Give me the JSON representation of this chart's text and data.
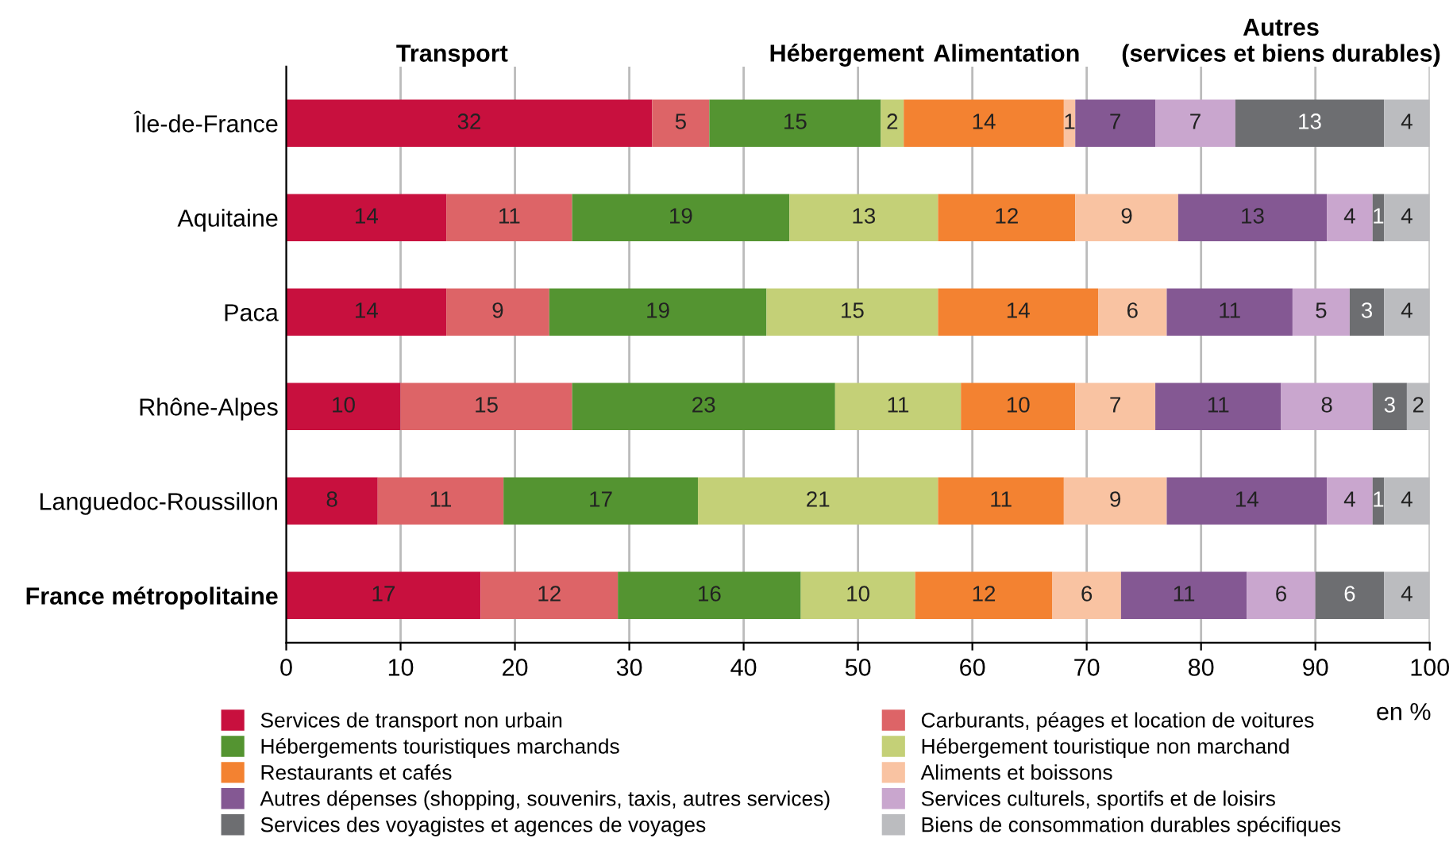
{
  "chart_data": {
    "type": "bar",
    "orientation": "horizontal",
    "stacked": true,
    "data_labels": true,
    "grid": "x",
    "legend": "bottom",
    "categories": [
      "Île-de-France",
      "Aquitaine",
      "Paca",
      "Rhône-Alpes",
      "Languedoc-Roussillon",
      "France métropolitaine"
    ],
    "xlim": [
      0,
      100
    ],
    "xticks": [
      0,
      10,
      20,
      30,
      40,
      50,
      60,
      70,
      80,
      90,
      100
    ],
    "annotations": [
      "Transport",
      "Hébergement",
      "Alimentation",
      "Autres\n(services et biens durables)",
      "en %"
    ],
    "series": [
      {
        "name": "Services de transport non urbain",
        "color": "#c8103e",
        "values": [
          32,
          14,
          14,
          10,
          8,
          17
        ]
      },
      {
        "name": "Carburants, péages et location de voitures",
        "color": "#dd6467",
        "values": [
          5,
          11,
          9,
          15,
          11,
          12
        ]
      },
      {
        "name": "Hébergements touristiques marchands",
        "color": "#549431",
        "values": [
          15,
          19,
          19,
          23,
          17,
          16
        ]
      },
      {
        "name": "Hébergement touristique non marchand",
        "color": "#c4d077",
        "values": [
          2,
          13,
          15,
          11,
          21,
          10
        ]
      },
      {
        "name": "Restaurants et cafés",
        "color": "#f38231",
        "values": [
          14,
          12,
          14,
          10,
          11,
          12
        ]
      },
      {
        "name": "Aliments et boissons",
        "color": "#f9c3a2",
        "values": [
          1,
          9,
          6,
          7,
          9,
          6
        ]
      },
      {
        "name": "Autres dépenses (shopping, souvenirs, taxis, autres services)",
        "color": "#845893",
        "values": [
          7,
          13,
          11,
          11,
          14,
          11
        ]
      },
      {
        "name": "Services culturels, sportifs et de loisirs",
        "color": "#c9a6ce",
        "values": [
          7,
          4,
          5,
          8,
          4,
          6
        ]
      },
      {
        "name": "Services des voyagistes et agences de voyages",
        "color": "#6d6e71",
        "values": [
          13,
          1,
          3,
          3,
          1,
          6
        ]
      },
      {
        "name": "Biens de consommation durables spécifiques",
        "color": "#bbbcbf",
        "values": [
          4,
          4,
          4,
          2,
          4,
          4
        ]
      }
    ]
  }
}
